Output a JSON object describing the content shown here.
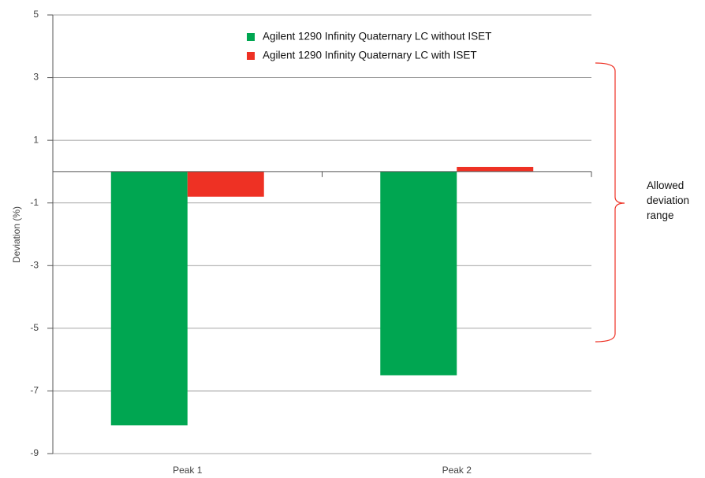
{
  "chart_data": {
    "type": "bar",
    "categories": [
      "Peak 1",
      "Peak 2"
    ],
    "series": [
      {
        "name": "Agilent 1290 Infinity Quaternary LC without ISET",
        "color": "#00a651",
        "values": [
          -8.1,
          -6.5
        ]
      },
      {
        "name": "Agilent 1290 Infinity Quaternary LC with ISET",
        "color": "#ee3124",
        "values": [
          -0.8,
          0.15
        ]
      }
    ],
    "y_label": "Deviation (%)",
    "annotation": "Allowed deviation range",
    "ylim": [
      -9,
      5
    ],
    "yticks": [
      5,
      3,
      1,
      -1,
      -3,
      -5,
      -7,
      -9
    ],
    "grid": true,
    "legend": "top"
  }
}
